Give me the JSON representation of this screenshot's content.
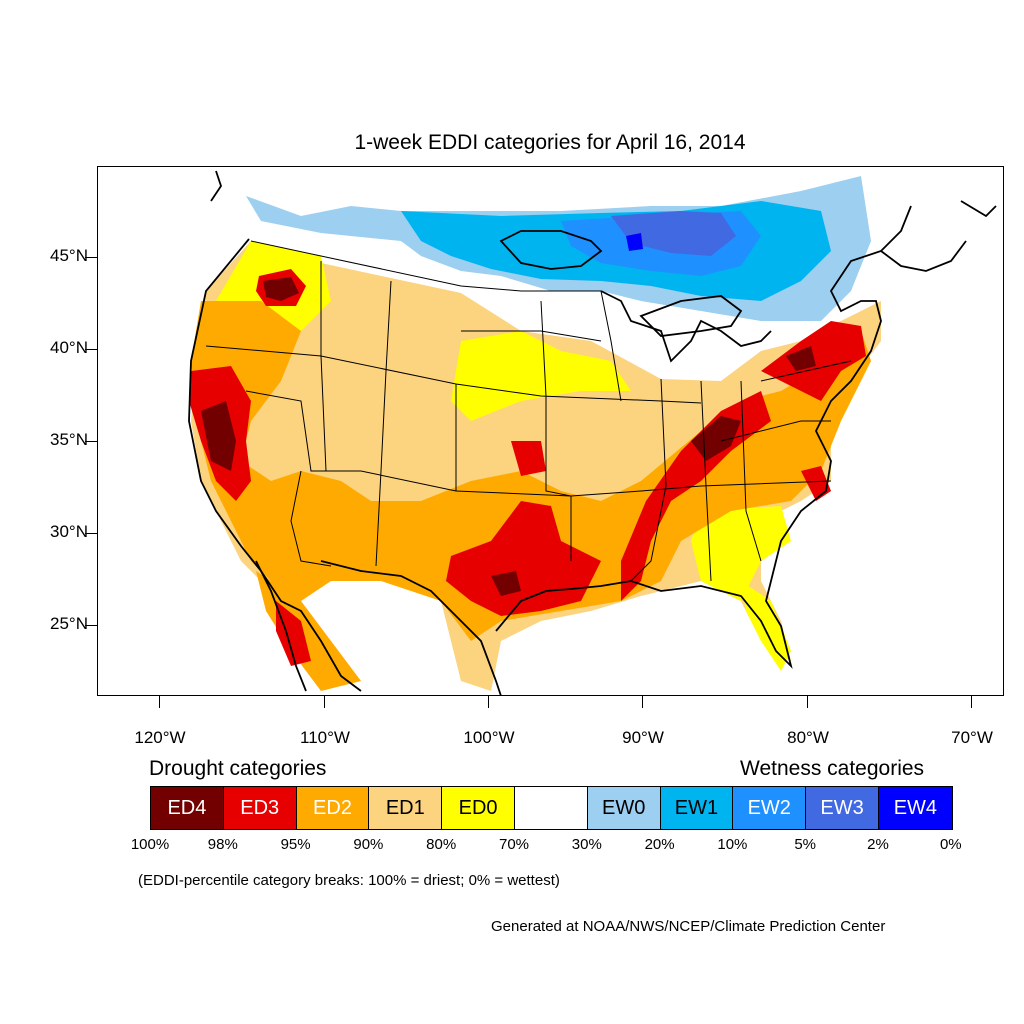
{
  "title": "1-week EDDI categories for April 16, 2014",
  "lat_labels": [
    "45°N",
    "40°N",
    "35°N",
    "30°N",
    "25°N"
  ],
  "lon_labels": [
    "120°W",
    "110°W",
    "100°W",
    "90°W",
    "80°W",
    "70°W"
  ],
  "legend": {
    "drought_heading": "Drought categories",
    "wetness_heading": "Wetness categories",
    "categories": [
      {
        "label": "ED4",
        "color": "#730000",
        "text_color": "#ffffff"
      },
      {
        "label": "ED3",
        "color": "#e60000",
        "text_color": "#ffffff"
      },
      {
        "label": "ED2",
        "color": "#ffaa00",
        "text_color": "#ffffff"
      },
      {
        "label": "ED1",
        "color": "#fcd37f",
        "text_color": "#000000"
      },
      {
        "label": "ED0",
        "color": "#ffff00",
        "text_color": "#000000"
      },
      {
        "label": "",
        "color": "#ffffff",
        "text_color": "#000000"
      },
      {
        "label": "EW0",
        "color": "#9ccff0",
        "text_color": "#000000"
      },
      {
        "label": "EW1",
        "color": "#00b4f0",
        "text_color": "#000000"
      },
      {
        "label": "EW2",
        "color": "#1e90ff",
        "text_color": "#ffffff"
      },
      {
        "label": "EW3",
        "color": "#4169e1",
        "text_color": "#ffffff"
      },
      {
        "label": "EW4",
        "color": "#0000ff",
        "text_color": "#ffffff"
      }
    ],
    "breaks": [
      "100%",
      "98%",
      "95%",
      "90%",
      "80%",
      "70%",
      "30%",
      "20%",
      "10%",
      "5%",
      "2%",
      "0%"
    ]
  },
  "note": "(EDDI-percentile category breaks: 100% = driest; 0% = wettest)",
  "credit": "Generated at NOAA/NWS/NCEP/Climate Prediction Center"
}
